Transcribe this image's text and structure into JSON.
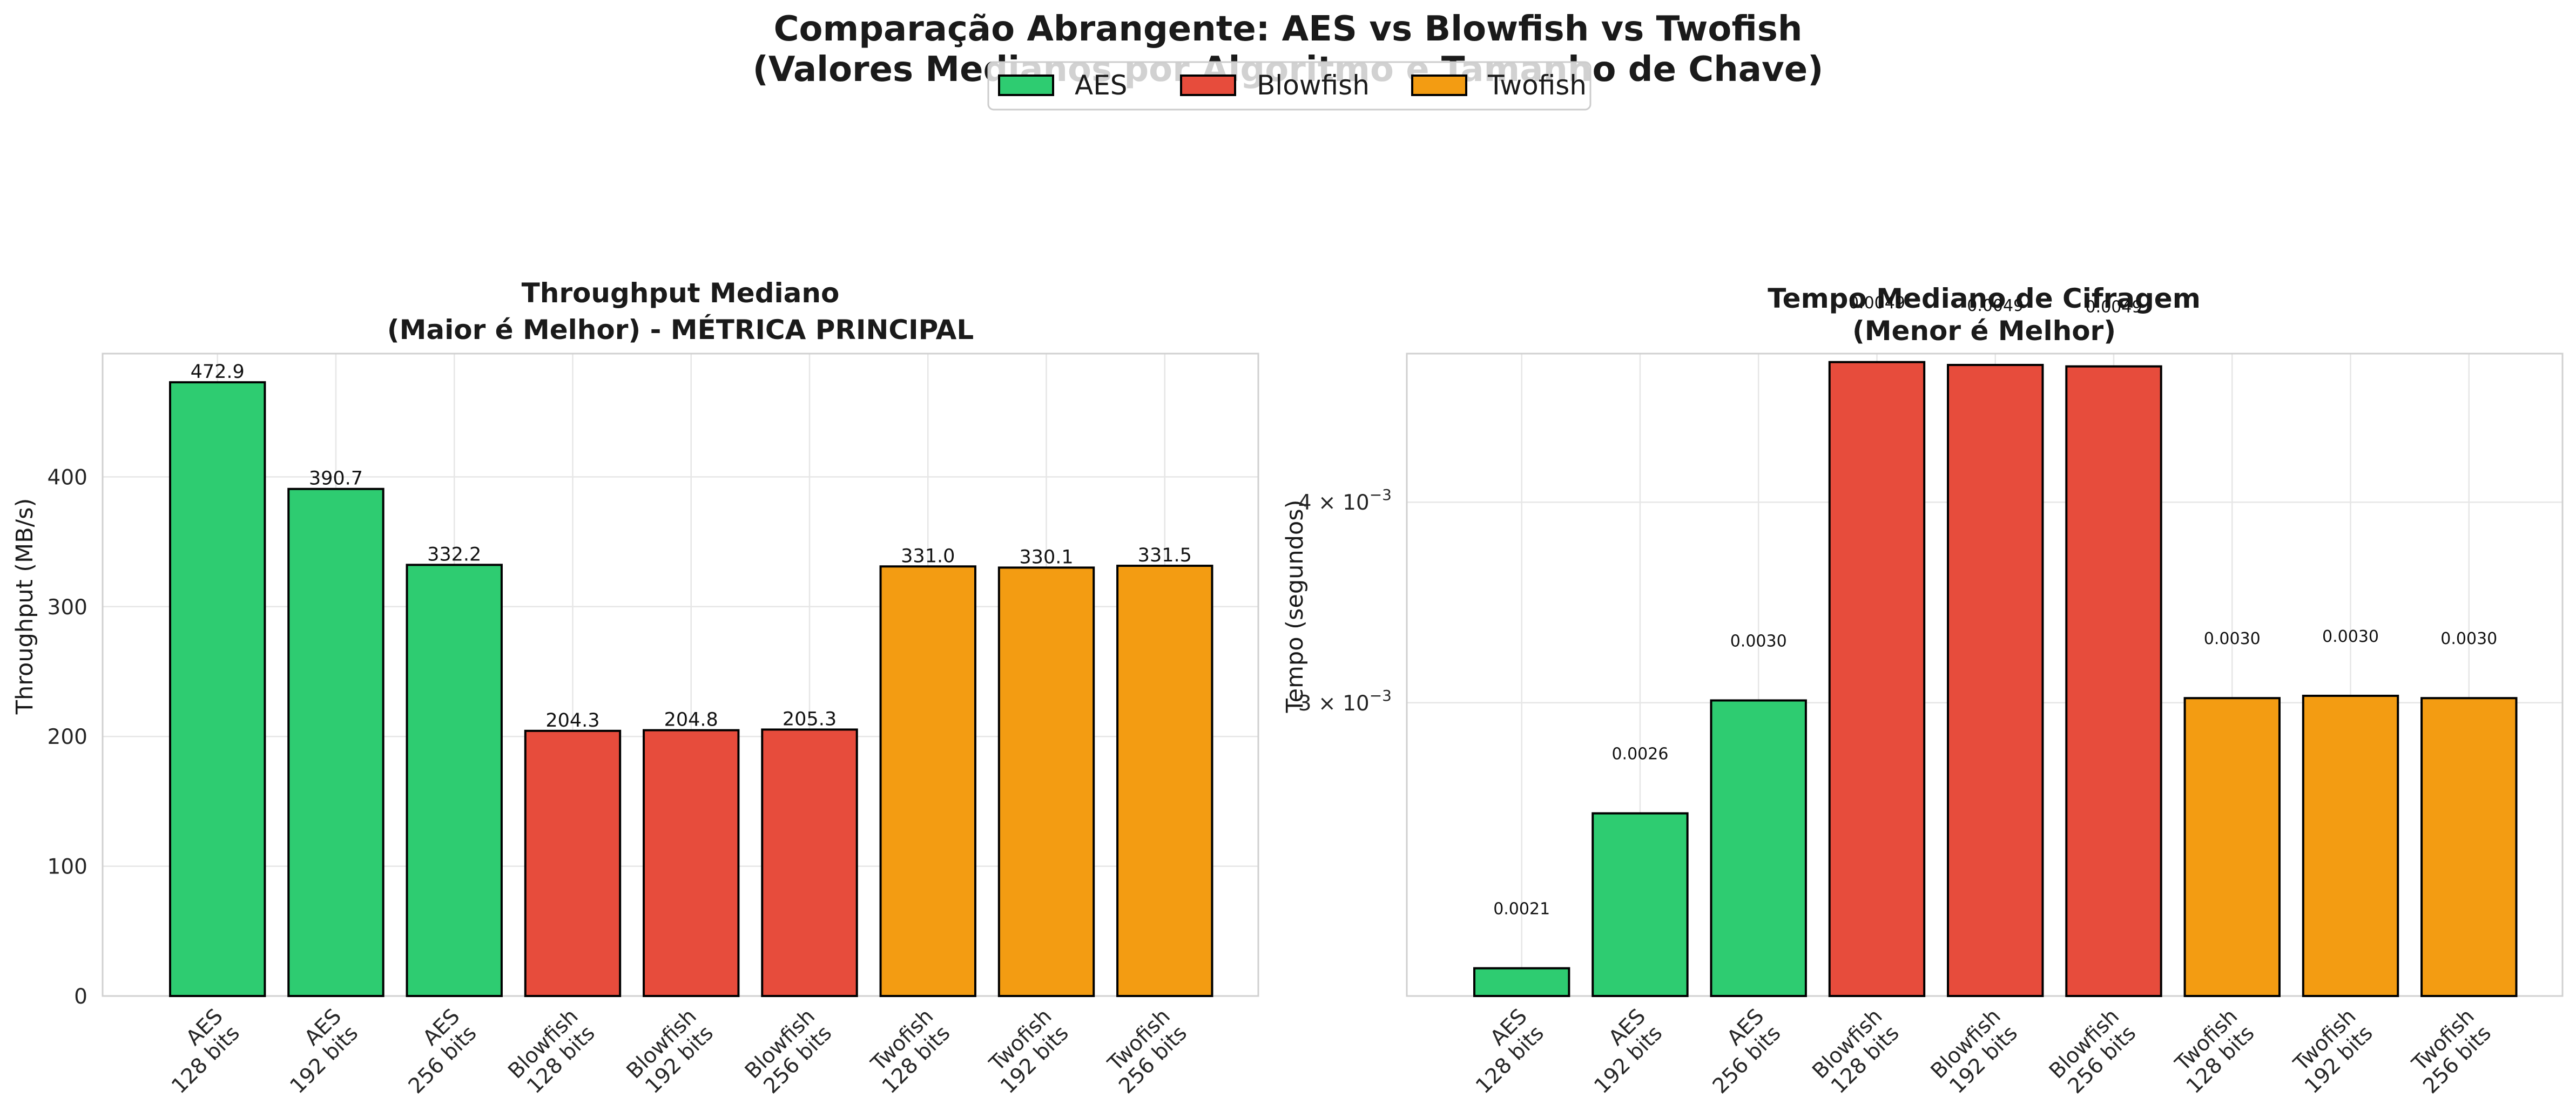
{
  "suptitle": {
    "line1": "Comparação Abrangente: AES vs Blowfish vs Twofish",
    "line2": "(Valores Medianos por Algoritmo e Tamanho de Chave)"
  },
  "legend": {
    "items": [
      {
        "label": "AES",
        "color": "#2ecc71"
      },
      {
        "label": "Blowfish",
        "color": "#e74c3c"
      },
      {
        "label": "Twofish",
        "color": "#f39c12"
      }
    ],
    "placement": "top-center"
  },
  "chart_data": [
    {
      "type": "bar",
      "title_line1": "Throughput Mediano",
      "title_line2": "(Maior é Melhor) - MÉTRICA PRINCIPAL",
      "xlabel": "",
      "ylabel": "Throughput (MB/s)",
      "ylim": [
        0,
        495
      ],
      "yscale": "linear",
      "yticks": [
        0,
        100,
        200,
        300,
        400
      ],
      "grid": true,
      "categories": [
        [
          "AES",
          "128 bits"
        ],
        [
          "AES",
          "192 bits"
        ],
        [
          "AES",
          "256 bits"
        ],
        [
          "Blowfish",
          "128 bits"
        ],
        [
          "Blowfish",
          "192 bits"
        ],
        [
          "Blowfish",
          "256 bits"
        ],
        [
          "Twofish",
          "128 bits"
        ],
        [
          "Twofish",
          "192 bits"
        ],
        [
          "Twofish",
          "256 bits"
        ]
      ],
      "algorithms": [
        "AES",
        "AES",
        "AES",
        "Blowfish",
        "Blowfish",
        "Blowfish",
        "Twofish",
        "Twofish",
        "Twofish"
      ],
      "values": [
        472.9,
        390.7,
        332.2,
        204.3,
        204.8,
        205.3,
        331.0,
        330.1,
        331.5
      ],
      "data_labels": [
        "472.9",
        "390.7",
        "332.2",
        "204.3",
        "204.8",
        "205.3",
        "331.0",
        "330.1",
        "331.5"
      ]
    },
    {
      "type": "bar",
      "title_line1": "Tempo Mediano de Cifragem",
      "title_line2": "(Menor é Melhor)",
      "xlabel": "",
      "ylabel": "Tempo (segundos)",
      "yscale": "log",
      "ylim": [
        0.00197,
        0.00495
      ],
      "yticks": [
        {
          "value": 0.003,
          "mantissa": "3",
          "exponent": "−3"
        },
        {
          "value": 0.004,
          "mantissa": "4",
          "exponent": "−3"
        }
      ],
      "grid": true,
      "categories": [
        [
          "AES",
          "128 bits"
        ],
        [
          "AES",
          "192 bits"
        ],
        [
          "AES",
          "256 bits"
        ],
        [
          "Blowfish",
          "128 bits"
        ],
        [
          "Blowfish",
          "192 bits"
        ],
        [
          "Blowfish",
          "256 bits"
        ],
        [
          "Twofish",
          "128 bits"
        ],
        [
          "Twofish",
          "192 bits"
        ],
        [
          "Twofish",
          "256 bits"
        ]
      ],
      "algorithms": [
        "AES",
        "AES",
        "AES",
        "Blowfish",
        "Blowfish",
        "Blowfish",
        "Twofish",
        "Twofish",
        "Twofish"
      ],
      "values": [
        0.00205,
        0.00256,
        0.00301,
        0.00489,
        0.00487,
        0.00486,
        0.00302,
        0.00303,
        0.00302
      ],
      "data_labels": [
        "0.0021",
        "0.0026",
        "0.0030",
        "0.0049",
        "0.0049",
        "0.0049",
        "0.0030",
        "0.0030",
        "0.0030"
      ]
    }
  ]
}
